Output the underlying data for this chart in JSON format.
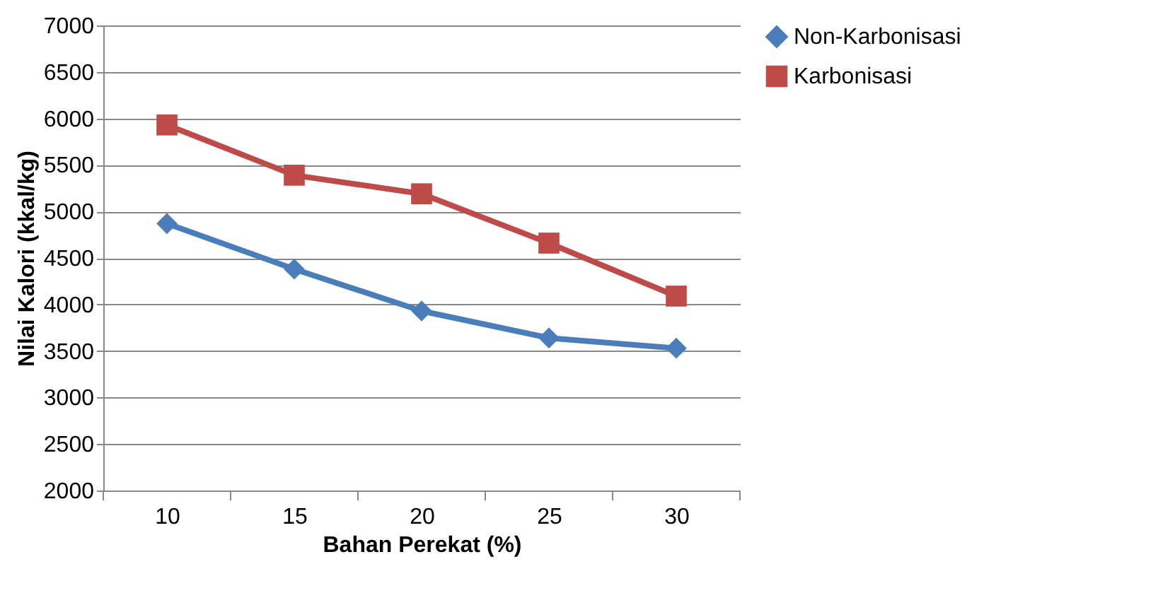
{
  "chart_data": {
    "type": "line",
    "xlabel": "Bahan Perekat (%)",
    "ylabel": "Nilai Kalori (kkal/kg)",
    "categories": [
      "10",
      "15",
      "20",
      "25",
      "30"
    ],
    "series": [
      {
        "name": "Non-Karbonisasi",
        "color": "#4a7ebb",
        "marker": "diamond",
        "values": [
          4870,
          4380,
          3930,
          3640,
          3530
        ]
      },
      {
        "name": "Karbonisasi",
        "color": "#be4b48",
        "marker": "square",
        "values": [
          5930,
          5390,
          5190,
          4660,
          4090
        ]
      }
    ],
    "ylim": [
      2000,
      7000
    ],
    "yticks": [
      2000,
      2500,
      3000,
      3500,
      4000,
      4500,
      5000,
      5500,
      6000,
      6500,
      7000
    ],
    "grid": "y",
    "legend": "right",
    "line_style": "solid"
  }
}
